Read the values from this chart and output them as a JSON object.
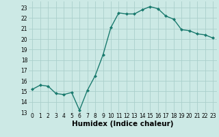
{
  "x": [
    0,
    1,
    2,
    3,
    4,
    5,
    6,
    7,
    8,
    9,
    10,
    11,
    12,
    13,
    14,
    15,
    16,
    17,
    18,
    19,
    20,
    21,
    22,
    23
  ],
  "y": [
    15.2,
    15.6,
    15.5,
    14.8,
    14.7,
    14.9,
    13.2,
    15.1,
    16.5,
    18.5,
    21.1,
    22.5,
    22.4,
    22.4,
    22.8,
    23.1,
    22.9,
    22.2,
    21.9,
    20.9,
    20.8,
    20.5,
    20.4,
    20.1
  ],
  "line_color": "#1a7a6e",
  "marker": "D",
  "marker_size": 2.0,
  "background_color": "#cce9e5",
  "grid_color": "#aacfcb",
  "xlabel": "Humidex (Indice chaleur)",
  "xlim": [
    -0.5,
    23.5
  ],
  "ylim": [
    13,
    23.6
  ],
  "yticks": [
    13,
    14,
    15,
    16,
    17,
    18,
    19,
    20,
    21,
    22,
    23
  ],
  "xticks": [
    0,
    1,
    2,
    3,
    4,
    5,
    6,
    7,
    8,
    9,
    10,
    11,
    12,
    13,
    14,
    15,
    16,
    17,
    18,
    19,
    20,
    21,
    22,
    23
  ],
  "tick_fontsize": 5.5,
  "xlabel_fontsize": 7.5,
  "line_width": 1.0
}
